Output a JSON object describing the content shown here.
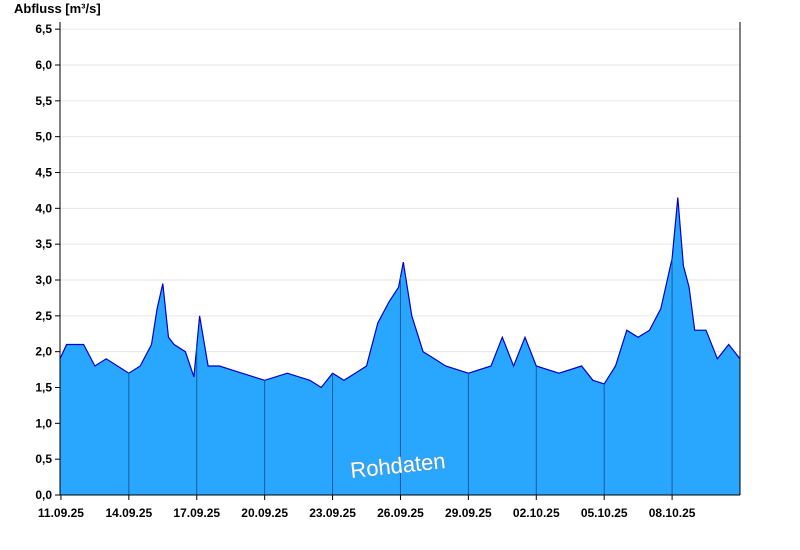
{
  "chart_data": {
    "type": "area",
    "title": "",
    "ylabel": "Abfluss [m³/s]",
    "xlabel": "",
    "watermark": "Rohdaten",
    "ylim": [
      0,
      6.6
    ],
    "xlim": [
      "2025-09-10T23:00",
      "2025-10-11T00:00"
    ],
    "y_ticks": [
      "0,0",
      "0,5",
      "1,0",
      "1,5",
      "2,0",
      "2,5",
      "3,0",
      "3,5",
      "4,0",
      "4,5",
      "5,0",
      "5,5",
      "6,0",
      "6,5"
    ],
    "y_tick_values": [
      0,
      0.5,
      1,
      1.5,
      2,
      2.5,
      3,
      3.5,
      4,
      4.5,
      5,
      5.5,
      6,
      6.5
    ],
    "x_ticks": [
      "11.09.25",
      "14.09.25",
      "17.09.25",
      "20.09.25",
      "23.09.25",
      "26.09.25",
      "29.09.25",
      "02.10.25",
      "05.10.25",
      "08.10.25"
    ],
    "x_tick_dates": [
      "2025-09-11",
      "2025-09-14",
      "2025-09-17",
      "2025-09-20",
      "2025-09-23",
      "2025-09-26",
      "2025-09-29",
      "2025-10-02",
      "2025-10-05",
      "2025-10-08"
    ],
    "grid": true,
    "colors": {
      "fill": "#29a7ff",
      "line": "#0000cc",
      "vline": "#1a5a99",
      "grid": "#e6e6e6",
      "axis": "#000000"
    },
    "series": [
      {
        "x": [
          "2025-09-10T23:00",
          "2025-09-11T06:00",
          "2025-09-11T12:00",
          "2025-09-12T00:00",
          "2025-09-12T12:00",
          "2025-09-13T00:00",
          "2025-09-13T12:00",
          "2025-09-14T00:00",
          "2025-09-14T12:00",
          "2025-09-15T00:00",
          "2025-09-15T06:00",
          "2025-09-15T12:00",
          "2025-09-15T18:00",
          "2025-09-16T00:00",
          "2025-09-16T12:00",
          "2025-09-16T21:00",
          "2025-09-17T03:00",
          "2025-09-17T12:00",
          "2025-09-18T00:00",
          "2025-09-19T00:00",
          "2025-09-20T00:00",
          "2025-09-21T00:00",
          "2025-09-22T00:00",
          "2025-09-22T12:00",
          "2025-09-23T00:00",
          "2025-09-23T12:00",
          "2025-09-24T00:00",
          "2025-09-24T12:00",
          "2025-09-25T00:00",
          "2025-09-25T12:00",
          "2025-09-25T22:00",
          "2025-09-26T03:00",
          "2025-09-26T12:00",
          "2025-09-27T00:00",
          "2025-09-27T12:00",
          "2025-09-28T00:00",
          "2025-09-29T00:00",
          "2025-09-30T00:00",
          "2025-09-30T12:00",
          "2025-10-01T00:00",
          "2025-10-01T12:00",
          "2025-10-02T00:00",
          "2025-10-03T00:00",
          "2025-10-04T00:00",
          "2025-10-04T12:00",
          "2025-10-05T00:00",
          "2025-10-05T12:00",
          "2025-10-06T00:00",
          "2025-10-06T12:00",
          "2025-10-07T00:00",
          "2025-10-07T12:00",
          "2025-10-08T00:00",
          "2025-10-08T06:00",
          "2025-10-08T12:00",
          "2025-10-08T18:00",
          "2025-10-09T00:00",
          "2025-10-09T12:00",
          "2025-10-10T00:00",
          "2025-10-10T12:00",
          "2025-10-11T00:00"
        ],
        "y": [
          1.9,
          2.1,
          2.1,
          2.1,
          1.8,
          1.9,
          1.8,
          1.7,
          1.8,
          2.1,
          2.6,
          2.95,
          2.2,
          2.1,
          2.0,
          1.65,
          2.5,
          1.8,
          1.8,
          1.7,
          1.6,
          1.7,
          1.6,
          1.5,
          1.7,
          1.6,
          1.7,
          1.8,
          2.4,
          2.7,
          2.9,
          3.25,
          2.5,
          2.0,
          1.9,
          1.8,
          1.7,
          1.8,
          2.2,
          1.8,
          2.2,
          1.8,
          1.7,
          1.8,
          1.6,
          1.55,
          1.8,
          2.3,
          2.2,
          2.3,
          2.6,
          3.3,
          4.15,
          3.2,
          2.9,
          2.3,
          2.3,
          1.9,
          2.1,
          1.9
        ]
      }
    ]
  }
}
